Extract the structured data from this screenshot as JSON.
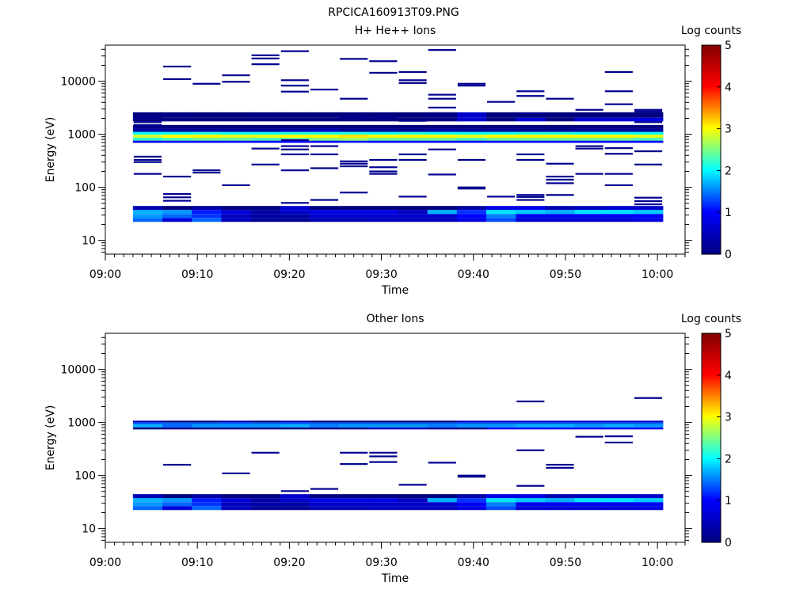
{
  "page_title": "RPCICA160913T09.PNG",
  "chart_data": [
    {
      "type": "heatmap",
      "title": "H+ He++ Ions",
      "xlabel": "Time",
      "ylabel": "Energy (eV)",
      "x_ticks": [
        "09:00",
        "09:10",
        "09:20",
        "09:30",
        "09:40",
        "09:50",
        "10:00"
      ],
      "y_ticks": [
        "10",
        "100",
        "1000",
        "10000"
      ],
      "y_scale": "log",
      "ylim": [
        5.5,
        48000
      ],
      "xlim_minutes": [
        0,
        63
      ],
      "grid": false,
      "colorbar": {
        "label": "Log counts",
        "min": 0,
        "max": 5,
        "ticks": [
          "0",
          "1",
          "2",
          "3",
          "4",
          "5"
        ]
      },
      "colormap": [
        "#000080",
        "#0000ff",
        "#00ffff",
        "#ffff00",
        "#ff0000",
        "#800000"
      ],
      "time_bins": {
        "start_minute": 3,
        "width_minutes": 3.2,
        "count": 18
      },
      "bands": [
        {
          "emin": 22.3,
          "emax": 26.5,
          "values": [
            1.4,
            0.7,
            1.4,
            0.5,
            0.2,
            0.2,
            0.4,
            0.4,
            0.5,
            0.5,
            0.5,
            0.8,
            1.3,
            0.7,
            0.7,
            0.7,
            0.7,
            0.8
          ]
        },
        {
          "emin": 26.5,
          "emax": 31.5,
          "values": [
            1.6,
            1.4,
            1.2,
            0.5,
            0.3,
            0.3,
            0.6,
            0.6,
            0.6,
            0.6,
            0.6,
            1.0,
            1.5,
            0.9,
            0.9,
            0.9,
            0.9,
            1.0
          ]
        },
        {
          "emin": 31.5,
          "emax": 37.5,
          "values": [
            1.7,
            1.6,
            1.1,
            0.7,
            0.3,
            0.6,
            0.8,
            0.8,
            0.8,
            0.5,
            1.7,
            1.2,
            1.9,
            1.8,
            1.7,
            1.9,
            1.9,
            1.8
          ]
        },
        {
          "emin": 37.5,
          "emax": 44.5,
          "values": [
            0.4,
            0,
            0.3,
            0,
            0,
            0.6,
            0,
            0,
            0,
            0,
            0,
            0.3,
            0.8,
            0.8,
            0.4,
            0.5,
            0.6,
            0.6
          ]
        },
        {
          "emin": 690,
          "emax": 760,
          "values": [
            0.8,
            0.9,
            1.0,
            1.0,
            0.9,
            1.0,
            1.0,
            1.1,
            1.0,
            1.0,
            1.0,
            0.9,
            1.0,
            1.0,
            1.0,
            1.0,
            1.0,
            1.0
          ]
        },
        {
          "emin": 760,
          "emax": 860,
          "values": [
            2.2,
            2.3,
            2.4,
            2.4,
            2.3,
            2.4,
            2.5,
            2.6,
            2.4,
            2.4,
            2.4,
            2.3,
            2.4,
            2.4,
            2.4,
            2.4,
            2.4,
            2.3
          ]
        },
        {
          "emin": 860,
          "emax": 990,
          "values": [
            2.8,
            3.0,
            3.0,
            2.9,
            2.9,
            3.0,
            3.0,
            3.1,
            3.0,
            3.0,
            3.0,
            2.9,
            3.0,
            3.0,
            3.0,
            3.0,
            3.0,
            2.9
          ]
        },
        {
          "emin": 990,
          "emax": 1110,
          "values": [
            2.0,
            2.0,
            2.1,
            2.0,
            2.0,
            2.1,
            2.1,
            2.1,
            2.0,
            2.1,
            2.0,
            2.0,
            2.0,
            2.1,
            2.1,
            2.0,
            2.0,
            2.0
          ]
        },
        {
          "emin": 1110,
          "emax": 1280,
          "values": [
            0.3,
            0.2,
            0.3,
            0.2,
            0.2,
            0.4,
            0.5,
            0.2,
            0.2,
            0.2,
            0.3,
            0.2,
            0.2,
            0.2,
            0.2,
            0.2,
            0.2,
            0.2
          ]
        },
        {
          "emin": 1280,
          "emax": 1500,
          "values": [
            0,
            0,
            0,
            0,
            0,
            0,
            0,
            0,
            0,
            0,
            0,
            0,
            0,
            0,
            0,
            0,
            0,
            0
          ]
        },
        {
          "emin": 1750,
          "emax": 2050,
          "values": [
            0,
            0,
            0,
            0,
            0,
            0,
            0,
            0,
            0,
            0,
            0,
            0.6,
            0,
            0.7,
            0,
            0.7,
            0.7,
            0.8
          ]
        },
        {
          "emin": 2050,
          "emax": 2600,
          "values": [
            0,
            0,
            0,
            0,
            0,
            0,
            0,
            0,
            0,
            0,
            0,
            0.6,
            0,
            0,
            0,
            0,
            0,
            0
          ]
        }
      ],
      "lines": [
        {
          "bin": 0,
          "energies": [
            2000,
            1700,
            1500,
            1350,
            380,
            330,
            300,
            180
          ]
        },
        {
          "bin": 1,
          "energies": [
            19000,
            11000,
            2300,
            160,
            75,
            65,
            56
          ]
        },
        {
          "bin": 2,
          "energies": [
            9000,
            210,
            190
          ]
        },
        {
          "bin": 3,
          "energies": [
            13000,
            9800,
            110
          ]
        },
        {
          "bin": 4,
          "energies": [
            31000,
            27000,
            21000,
            2300,
            540,
            270
          ]
        },
        {
          "bin": 5,
          "energies": [
            37000,
            10500,
            8300,
            6400,
            780,
            600,
            520,
            420,
            210,
            51
          ]
        },
        {
          "bin": 6,
          "energies": [
            7000,
            600,
            420,
            230,
            58
          ]
        },
        {
          "bin": 7,
          "energies": [
            26500,
            4700,
            2000,
            310,
            280,
            250,
            80
          ]
        },
        {
          "bin": 8,
          "energies": [
            24000,
            14500,
            2000,
            330,
            240,
            200,
            180
          ]
        },
        {
          "bin": 9,
          "energies": [
            15000,
            10500,
            9300,
            1800,
            420,
            330,
            67
          ]
        },
        {
          "bin": 10,
          "energies": [
            39000,
            5600,
            4700,
            3200,
            2300,
            520,
            175
          ]
        },
        {
          "bin": 11,
          "energies": [
            9000,
            8300,
            330,
            100,
            95
          ]
        },
        {
          "bin": 12,
          "energies": [
            4100,
            67
          ]
        },
        {
          "bin": 13,
          "energies": [
            6500,
            5300,
            2500,
            420,
            330,
            72,
            66,
            58
          ]
        },
        {
          "bin": 14,
          "energies": [
            4700,
            1250,
            280,
            160,
            140,
            120,
            72
          ]
        },
        {
          "bin": 15,
          "energies": [
            2900,
            600,
            540,
            180
          ]
        },
        {
          "bin": 16,
          "energies": [
            15000,
            6500,
            3700,
            550,
            430,
            180,
            110
          ]
        },
        {
          "bin": 17,
          "energies": [
            2900,
            2700,
            1700,
            480,
            270,
            64,
            55,
            48
          ]
        }
      ]
    },
    {
      "type": "heatmap",
      "title": "Other Ions",
      "xlabel": "Time",
      "ylabel": "Energy (eV)",
      "x_ticks": [
        "09:00",
        "09:10",
        "09:20",
        "09:30",
        "09:40",
        "09:50",
        "10:00"
      ],
      "y_ticks": [
        "10",
        "100",
        "1000",
        "10000"
      ],
      "y_scale": "log",
      "ylim": [
        5.5,
        48000
      ],
      "xlim_minutes": [
        0,
        63
      ],
      "grid": false,
      "colorbar": {
        "label": "Log counts",
        "min": 0,
        "max": 5,
        "ticks": [
          "0",
          "1",
          "2",
          "3",
          "4",
          "5"
        ]
      },
      "colormap": [
        "#000080",
        "#0000ff",
        "#00ffff",
        "#ffff00",
        "#ff0000",
        "#800000"
      ],
      "time_bins": {
        "start_minute": 3,
        "width_minutes": 3.2,
        "count": 18
      },
      "bands": [
        {
          "emin": 22.3,
          "emax": 26.5,
          "values": [
            1.4,
            0.7,
            1.4,
            0.5,
            0.2,
            0.2,
            0.4,
            0.4,
            0.5,
            0.5,
            0.5,
            0.8,
            1.3,
            0.7,
            0.7,
            0.7,
            0.7,
            0.8
          ]
        },
        {
          "emin": 26.5,
          "emax": 31.5,
          "values": [
            1.6,
            1.4,
            1.2,
            0.5,
            0.3,
            0.3,
            0.6,
            0.6,
            0.6,
            0.6,
            0.6,
            1.0,
            1.5,
            0.9,
            0.9,
            0.9,
            0.9,
            1.0
          ]
        },
        {
          "emin": 31.5,
          "emax": 37.5,
          "values": [
            1.7,
            1.6,
            1.1,
            0.7,
            0.3,
            0.6,
            0.8,
            0.8,
            0.8,
            0.5,
            1.7,
            1.2,
            1.9,
            1.8,
            1.7,
            1.9,
            1.9,
            1.8
          ]
        },
        {
          "emin": 37.5,
          "emax": 44.5,
          "values": [
            0.4,
            0,
            0.3,
            0,
            0,
            0.6,
            0,
            0,
            0,
            0,
            0,
            0.3,
            0.8,
            0.8,
            0.4,
            0.5,
            0.6,
            0.6
          ]
        },
        {
          "emin": 740,
          "emax": 810,
          "values": [
            0,
            0.1,
            0.1,
            0.1,
            0.1,
            0.1,
            0.1,
            0.1,
            0.5,
            0.5,
            0.2,
            0.1,
            0.9,
            0.9,
            0.9,
            0.9,
            0.9,
            0.9
          ]
        },
        {
          "emin": 810,
          "emax": 920,
          "values": [
            1.7,
            1.4,
            1.6,
            1.6,
            1.6,
            1.7,
            1.5,
            1.6,
            1.6,
            1.6,
            1.5,
            1.6,
            1.6,
            1.7,
            1.7,
            1.6,
            1.7,
            1.6
          ]
        },
        {
          "emin": 920,
          "emax": 1000,
          "values": [
            1.4,
            1.4,
            1.4,
            1.4,
            1.4,
            1.4,
            1.4,
            1.4,
            1.4,
            1.4,
            1.4,
            1.4,
            1.4,
            1.4,
            1.4,
            1.4,
            1.4,
            1.4
          ]
        },
        {
          "emin": 1000,
          "emax": 1080,
          "values": [
            0.5,
            0,
            0,
            0.5,
            0,
            0.5,
            0,
            0,
            0,
            0,
            0,
            0.6,
            0.6,
            0.6,
            0.6,
            0.6,
            0.6,
            0.6
          ]
        }
      ],
      "lines": [
        {
          "bin": 1,
          "energies": [
            160
          ]
        },
        {
          "bin": 3,
          "energies": [
            110
          ]
        },
        {
          "bin": 4,
          "energies": [
            270
          ]
        },
        {
          "bin": 5,
          "energies": [
            51
          ]
        },
        {
          "bin": 6,
          "energies": [
            56
          ]
        },
        {
          "bin": 7,
          "energies": [
            270,
            165
          ]
        },
        {
          "bin": 8,
          "energies": [
            270,
            230,
            180
          ]
        },
        {
          "bin": 9,
          "energies": [
            67
          ]
        },
        {
          "bin": 10,
          "energies": [
            175
          ]
        },
        {
          "bin": 11,
          "energies": [
            100,
            95
          ]
        },
        {
          "bin": 13,
          "energies": [
            2500,
            300,
            64
          ]
        },
        {
          "bin": 14,
          "energies": [
            160,
            140
          ]
        },
        {
          "bin": 15,
          "energies": [
            540
          ]
        },
        {
          "bin": 16,
          "energies": [
            550,
            420
          ]
        },
        {
          "bin": 17,
          "energies": [
            2900
          ]
        }
      ]
    }
  ]
}
